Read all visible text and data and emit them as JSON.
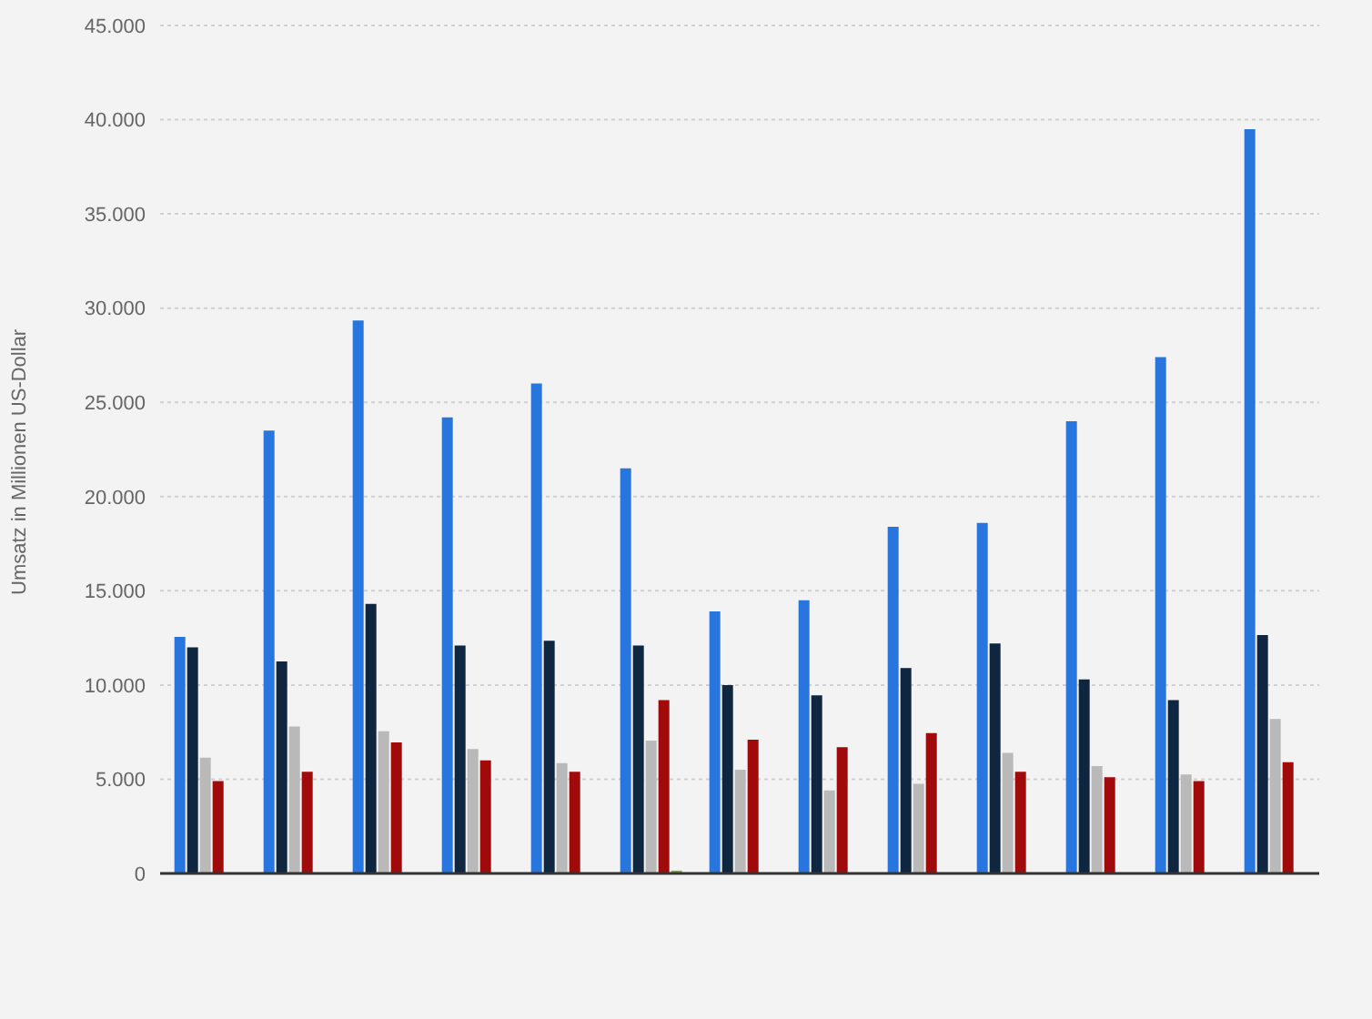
{
  "chart_data": {
    "type": "bar",
    "ylabel": "Umsatz in Millionen US-Dollar",
    "categories": [
      null,
      null,
      null,
      null,
      null,
      null,
      null,
      null,
      null,
      null,
      null,
      null,
      null
    ],
    "series": [
      {
        "color": "#2876dd",
        "values": [
          12550,
          23500,
          29350,
          24200,
          26000,
          21500,
          13900,
          14500,
          18400,
          18600,
          24000,
          27400,
          39500
        ]
      },
      {
        "color": "#0f2641",
        "values": [
          12000,
          11250,
          14300,
          12100,
          12350,
          12100,
          10000,
          9450,
          10900,
          12200,
          10300,
          9200,
          12650
        ]
      },
      {
        "color": "#b9b9b9",
        "values": [
          6150,
          7800,
          7550,
          6600,
          5850,
          7050,
          5500,
          4400,
          4750,
          6400,
          5700,
          5250,
          8200
        ]
      },
      {
        "color": "#a10a0a",
        "values": [
          4900,
          5400,
          6950,
          6000,
          5400,
          9200,
          7100,
          6700,
          7450,
          5400,
          5100,
          4900,
          5900
        ]
      },
      {
        "color": "#7cb342",
        "values": [
          null,
          null,
          null,
          null,
          null,
          150,
          null,
          null,
          null,
          null,
          null,
          null,
          null
        ]
      }
    ],
    "ylim": [
      0,
      45000
    ],
    "yticks": [
      {
        "value": 0,
        "label": "0"
      },
      {
        "value": 5000,
        "label": "5.000"
      },
      {
        "value": 10000,
        "label": "10.000"
      },
      {
        "value": 15000,
        "label": "15.000"
      },
      {
        "value": 20000,
        "label": "20.000"
      },
      {
        "value": 25000,
        "label": "25.000"
      },
      {
        "value": 30000,
        "label": "30.000"
      },
      {
        "value": 35000,
        "label": "35.000"
      },
      {
        "value": 40000,
        "label": "40.000"
      },
      {
        "value": 45000,
        "label": "45.000"
      }
    ],
    "grid": "y",
    "legend": false
  }
}
